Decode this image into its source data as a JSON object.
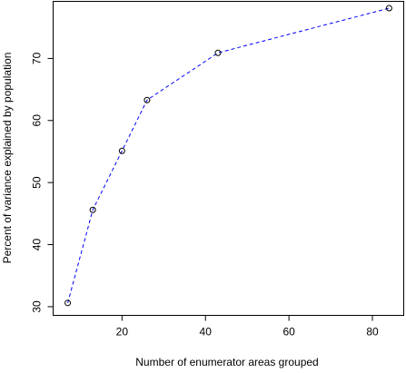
{
  "chart_data": {
    "type": "line",
    "title": "",
    "xlabel": "Number of enumerator areas grouped",
    "ylabel": "Percent of variance explained by population",
    "xlim": [
      3.5,
      87.5
    ],
    "ylim": [
      28.6,
      79.2
    ],
    "x_ticks": [
      20,
      40,
      60,
      80
    ],
    "y_ticks": [
      30,
      40,
      50,
      60,
      70
    ],
    "grid": false,
    "legend": "none",
    "series": [
      {
        "x": [
          7,
          13,
          20,
          26,
          43,
          84
        ],
        "y": [
          30.6,
          45.6,
          55.1,
          63.3,
          70.9,
          78.1
        ],
        "line_style": "dashed",
        "line_color": "#0000ff",
        "marker": "open-circle",
        "marker_color": "#000000"
      }
    ]
  }
}
